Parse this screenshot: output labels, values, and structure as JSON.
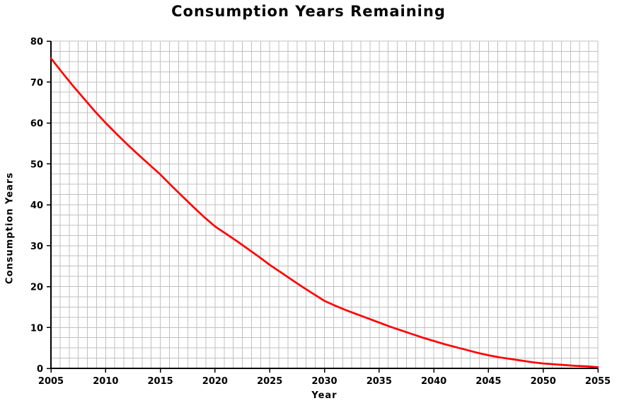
{
  "chart": {
    "title": "Consumption Years Remaining",
    "xlabel": "Year",
    "ylabel": "Consumption Years"
  },
  "chart_data": {
    "type": "line",
    "title": "Consumption Years Remaining",
    "xlabel": "Year",
    "ylabel": "Consumption Years",
    "x": [
      2005,
      2006,
      2007,
      2008,
      2009,
      2010,
      2011,
      2012,
      2013,
      2014,
      2015,
      2016,
      2017,
      2018,
      2019,
      2020,
      2021,
      2022,
      2023,
      2024,
      2025,
      2026,
      2027,
      2028,
      2029,
      2030,
      2031,
      2032,
      2033,
      2034,
      2035,
      2036,
      2037,
      2038,
      2039,
      2040,
      2041,
      2042,
      2043,
      2044,
      2045,
      2046,
      2047,
      2048,
      2049,
      2050,
      2051,
      2052,
      2053,
      2054,
      2055
    ],
    "values": [
      75.8,
      72.4,
      69.1,
      66.0,
      62.9,
      60.0,
      57.3,
      54.7,
      52.2,
      49.8,
      47.4,
      44.7,
      42.1,
      39.5,
      37.0,
      34.7,
      32.9,
      31.1,
      29.2,
      27.3,
      25.3,
      23.5,
      21.7,
      19.9,
      18.2,
      16.5,
      15.3,
      14.2,
      13.2,
      12.2,
      11.2,
      10.2,
      9.3,
      8.4,
      7.5,
      6.7,
      5.9,
      5.2,
      4.5,
      3.8,
      3.2,
      2.7,
      2.3,
      1.9,
      1.5,
      1.2,
      1.0,
      0.8,
      0.6,
      0.5,
      0.3
    ],
    "xlim": [
      2005,
      2055
    ],
    "ylim": [
      0,
      80
    ],
    "x_tick_labels": [
      "2005",
      "2010",
      "2015",
      "2020",
      "2025",
      "2030",
      "2035",
      "2040",
      "2045",
      "2050",
      "2055"
    ],
    "x_tick_values": [
      2005,
      2010,
      2015,
      2020,
      2025,
      2030,
      2035,
      2040,
      2045,
      2050,
      2055
    ],
    "y_tick_labels": [
      "0",
      "10",
      "20",
      "30",
      "40",
      "50",
      "60",
      "70",
      "80"
    ],
    "y_tick_values": [
      0,
      10,
      20,
      30,
      40,
      50,
      60,
      70,
      80
    ],
    "x_minor_divisions": 60,
    "y_minor_divisions": 32,
    "grid": true,
    "legend": "none",
    "line_color": "#FF0000",
    "grid_color": "#C0C0C0",
    "axis_color": "#000000",
    "background": "#FFFFFF"
  }
}
